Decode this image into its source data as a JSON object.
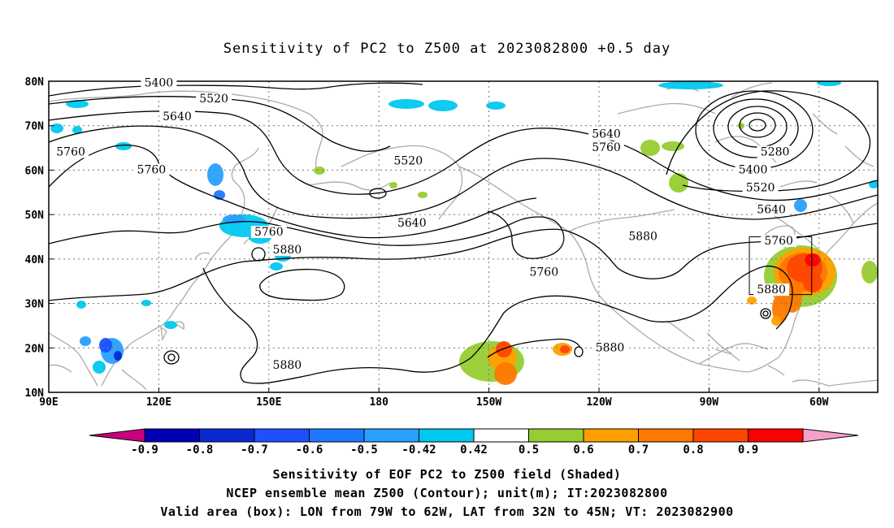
{
  "title": "Sensitivity of PC2 to Z500 at 2023082800 +0.5 day",
  "lat_labels": [
    "80N",
    "70N",
    "60N",
    "50N",
    "40N",
    "30N",
    "20N",
    "10N"
  ],
  "lon_labels": [
    "90E",
    "120E",
    "150E",
    "180",
    "150W",
    "120W",
    "90W",
    "60W"
  ],
  "contour_labels": [
    {
      "text": "5400",
      "lon": 120,
      "lat": 79.5
    },
    {
      "text": "5520",
      "lon": 135,
      "lat": 76
    },
    {
      "text": "5640",
      "lon": 125,
      "lat": 72
    },
    {
      "text": "5760",
      "lon": 96,
      "lat": 64
    },
    {
      "text": "5760",
      "lon": 118,
      "lat": 60
    },
    {
      "text": "5520",
      "lon": -172,
      "lat": 62
    },
    {
      "text": "5640",
      "lon": -171,
      "lat": 48
    },
    {
      "text": "5640",
      "lon": -118,
      "lat": 68
    },
    {
      "text": "5760",
      "lon": -118,
      "lat": 65
    },
    {
      "text": "5280",
      "lon": -72,
      "lat": 64
    },
    {
      "text": "5400",
      "lon": -78,
      "lat": 60
    },
    {
      "text": "5520",
      "lon": -76,
      "lat": 56
    },
    {
      "text": "5640",
      "lon": -73,
      "lat": 51
    },
    {
      "text": "5760",
      "lon": 150,
      "lat": 46
    },
    {
      "text": "5880",
      "lon": 155,
      "lat": 42
    },
    {
      "text": "5760",
      "lon": -135,
      "lat": 37
    },
    {
      "text": "5880",
      "lon": -108,
      "lat": 45
    },
    {
      "text": "5760",
      "lon": -71,
      "lat": 44
    },
    {
      "text": "5880",
      "lon": -73,
      "lat": 33
    },
    {
      "text": "5880",
      "lon": -117,
      "lat": 20
    },
    {
      "text": "5880",
      "lon": 155,
      "lat": 16
    }
  ],
  "colorbar": {
    "labels": [
      "-0.9",
      "-0.8",
      "-0.7",
      "-0.6",
      "-0.5",
      "-0.42",
      "0.42",
      "0.5",
      "0.6",
      "0.7",
      "0.8",
      "0.9"
    ],
    "colors": [
      "#c8007f",
      "#0000b4",
      "#0a28d2",
      "#1e50ff",
      "#1e78ff",
      "#28a0ff",
      "#00c8f0",
      "#ffffff",
      "#96cd32",
      "#ffa000",
      "#ff7800",
      "#ff4600",
      "#ff0000",
      "#f5a0c8"
    ]
  },
  "valid_box": {
    "lon_min": -79,
    "lon_max": -62,
    "lat_min": 32,
    "lat_max": 45
  },
  "captions": [
    "Sensitivity of EOF PC2 to Z500 field (Shaded)",
    "NCEP ensemble mean Z500 (Contour); unit(m); IT:2023082800",
    "Valid area (box): LON from 79W to 62W, LAT from 32N to 45N; VT: 2023082900"
  ]
}
